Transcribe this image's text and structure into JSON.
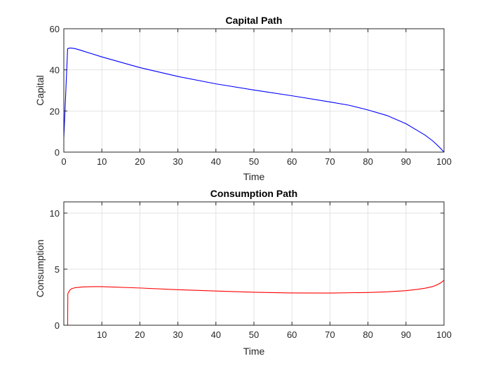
{
  "chart_data": [
    {
      "type": "line",
      "title": "Capital Path",
      "xlabel": "Time",
      "ylabel": "Capital",
      "xlim": [
        0,
        100
      ],
      "ylim": [
        0,
        60
      ],
      "xticks": [
        "0",
        "10",
        "20",
        "30",
        "40",
        "50",
        "60",
        "70",
        "80",
        "90",
        "100"
      ],
      "yticks": [
        "0",
        "20",
        "40",
        "60"
      ],
      "grid": true,
      "series": [
        {
          "color": "#0000ff",
          "x": [
            0,
            1,
            1.5,
            2,
            3,
            4,
            5,
            10,
            20,
            30,
            40,
            50,
            60,
            70,
            75,
            80,
            85,
            90,
            93,
            95,
            97,
            98,
            99,
            100
          ],
          "y": [
            7,
            50.3,
            50.6,
            50.6,
            50.3,
            49.8,
            49.2,
            46.3,
            41.1,
            36.8,
            33.2,
            30.2,
            27.4,
            24.4,
            22.8,
            20.5,
            17.8,
            13.8,
            10.5,
            8.3,
            5.5,
            3.8,
            2.0,
            0
          ]
        }
      ]
    },
    {
      "type": "line",
      "title": "Consumption Path",
      "xlabel": "Time",
      "ylabel": "Consumption",
      "xlim": [
        0,
        100
      ],
      "ylim": [
        0,
        11
      ],
      "xticks": [
        "10",
        "20",
        "30",
        "40",
        "50",
        "60",
        "70",
        "80",
        "90",
        "100"
      ],
      "yticks": [
        "0",
        "5",
        "10"
      ],
      "grid": true,
      "series": [
        {
          "color": "#ff0000",
          "x": [
            1,
            1.05,
            1.5,
            2,
            3,
            5,
            8,
            10,
            20,
            30,
            40,
            50,
            60,
            70,
            80,
            85,
            90,
            93,
            95,
            97,
            98,
            99,
            100
          ],
          "y": [
            -0.2,
            2.8,
            3.1,
            3.25,
            3.35,
            3.42,
            3.44,
            3.44,
            3.32,
            3.17,
            3.05,
            2.94,
            2.88,
            2.87,
            2.92,
            2.98,
            3.08,
            3.2,
            3.3,
            3.45,
            3.58,
            3.75,
            4.0
          ]
        }
      ]
    }
  ]
}
